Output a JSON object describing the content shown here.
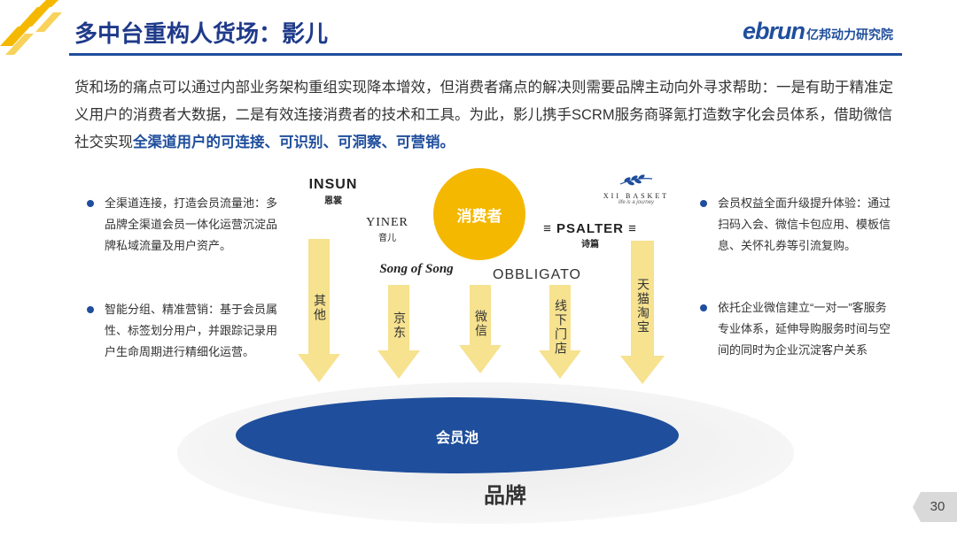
{
  "header": {
    "title": "多中台重构人货场：影儿",
    "logo_latin": "ebrun",
    "logo_cn": "亿邦动力研究院"
  },
  "intro": {
    "part1": "货和场的痛点可以通过内部业务架构重组实现降本增效，但消费者痛点的解决则需要品牌主动向外寻求帮助：一是有助于精准定义用户的消费者大数据，二是有效连接消费者的技术和工具。为此，影儿携手SCRM服务商驿氪打造数字化会员体系，借助微信社交实现",
    "highlight": "全渠道用户的可连接、可识别、可洞察、可营销。"
  },
  "left_bullets": [
    "全渠道连接，打造会员流量池：多品牌全渠道会员一体化运营沉淀品牌私域流量及用户资产。",
    "智能分组、精准营销：基于会员属性、标签划分用户，并跟踪记录用户生命周期进行精细化运营。"
  ],
  "right_bullets": [
    "会员权益全面升级提升体验：通过扫码入会、微信卡包应用、模板信息、关怀礼券等引流复购。",
    "依托企业微信建立“一对一”客服务专业体系，延伸导购服务时间与空间的同时为企业沉淀客户关系"
  ],
  "consumer": "消费者",
  "brands": {
    "insun": "INSUN",
    "insun_cn": "恩裳",
    "yiner": "YINER",
    "yiner_cn": "音儿",
    "song": "Song of Song",
    "obbligato": "OBBLIGATO",
    "psalter": "PSALTER",
    "psalter_cn": "诗篇",
    "basket": "XII BASKET",
    "basket_sub": "life is a journey"
  },
  "channels": [
    "其他",
    "京东",
    "微信",
    "线下门店",
    "天猫淘宝"
  ],
  "pool": "会员池",
  "brand_label": "品牌",
  "page_number": "30",
  "colors": {
    "navy": "#1f4e9c",
    "gold": "#f5b800",
    "arrow": "#f6e28f"
  }
}
